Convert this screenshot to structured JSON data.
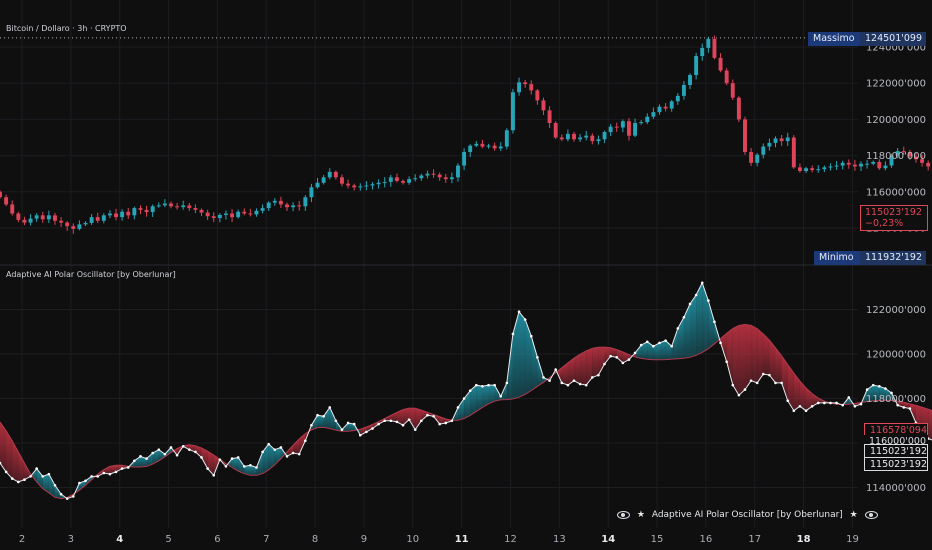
{
  "header": {
    "symbol_title": "Bitcoin / Dollaro · 3h · CRYPTO",
    "indicator_title": "Adaptive AI Polar Oscillator [by Oberlunar]"
  },
  "price_tags": {
    "max_label": "Massimo",
    "max_value": "124501'099",
    "min_label": "Minimo",
    "min_value": "111932'192",
    "last_price": "115023'192",
    "last_change": "−0,23%",
    "osc_red_value": "116578'094",
    "osc_gray_value": "116000'000",
    "osc_white_value_1": "115023'192",
    "osc_white_value_2": "115023'192"
  },
  "bottom_legend": {
    "left_icon": "eye-icon",
    "star": "★",
    "label": "Adaptive AI Polar Oscillator [by Oberlunar]",
    "right_icon": "eye-icon"
  },
  "colors": {
    "background": "#0f0f10",
    "up": "#26a6b8",
    "down": "#e0445a",
    "grid": "#1c1d20"
  },
  "chart_data": [
    {
      "type": "candlestick",
      "title": "Bitcoin / Dollaro · 3h · CRYPTO",
      "y_ticks": [
        114000,
        116000,
        118000,
        120000,
        122000,
        124000
      ],
      "ylim": [
        113400,
        124700
      ],
      "x_ticks": [
        "2",
        "3",
        "4",
        "5",
        "6",
        "7",
        "8",
        "9",
        "10",
        "11",
        "12",
        "13",
        "14",
        "15",
        "16",
        "17",
        "18",
        "19"
      ],
      "x_ticks_bold": [
        "4",
        "11",
        "14",
        "18"
      ],
      "period_hours": 3,
      "x_start_day": 1.55,
      "close": [
        115700,
        115300,
        114800,
        114450,
        114300,
        114520,
        114700,
        114480,
        114700,
        114400,
        114300,
        114100,
        113950,
        114200,
        114280,
        114600,
        114400,
        114700,
        114800,
        114600,
        114900,
        114700,
        115100,
        115000,
        114880,
        115200,
        115250,
        115350,
        115200,
        115150,
        115250,
        115100,
        115000,
        114850,
        114650,
        114550,
        114720,
        114800,
        114600,
        114900,
        114800,
        114750,
        114950,
        115100,
        115400,
        115500,
        115300,
        115150,
        115250,
        115200,
        115700,
        116250,
        116500,
        116800,
        117100,
        116800,
        116450,
        116350,
        116250,
        116300,
        116350,
        116420,
        116500,
        116550,
        116800,
        116600,
        116500,
        116700,
        116750,
        116900,
        117000,
        116950,
        116800,
        116700,
        116800,
        117450,
        118200,
        118550,
        118650,
        118500,
        118550,
        118400,
        118500,
        119400,
        121500,
        122050,
        121950,
        121600,
        121050,
        120500,
        119800,
        119000,
        118900,
        119200,
        118900,
        119000,
        119100,
        118800,
        118900,
        119300,
        119600,
        119550,
        119900,
        119100,
        119800,
        119850,
        120150,
        120400,
        120700,
        120600,
        121000,
        121300,
        121900,
        122450,
        123500,
        123950,
        124450,
        123400,
        122700,
        122000,
        121200,
        120000,
        118200,
        117600,
        118050,
        118500,
        118700,
        118950,
        118800,
        119000,
        117350,
        117150,
        117300,
        117200,
        117250,
        117350,
        117400,
        117450,
        117600,
        117500,
        117400,
        117550,
        117550,
        117650,
        117300,
        117450,
        118000,
        118250,
        118200,
        117950,
        117800,
        117600,
        117400,
        117500,
        116850,
        115800,
        115700,
        115550,
        115250,
        115750,
        115950,
        116200,
        115600,
        115023
      ]
    },
    {
      "type": "area",
      "title": "Adaptive AI Polar Oscillator [by Oberlunar]",
      "y_ticks": [
        114000,
        116000,
        118000,
        120000,
        122000
      ],
      "ylim": [
        113200,
        123400
      ],
      "x_start_day": 1.55,
      "series": [
        {
          "name": "",
          "values": [
            115100,
            114700,
            114400,
            114250,
            114350,
            114500,
            114850,
            114500,
            114600,
            114100,
            113700,
            113500,
            113600,
            114200,
            114300,
            114500,
            114500,
            114650,
            114600,
            114700,
            114850,
            114900,
            115200,
            115400,
            115300,
            115550,
            115700,
            115500,
            115800,
            115450,
            115850,
            115700,
            115600,
            115350,
            114850,
            114550,
            115250,
            114950,
            115300,
            115350,
            114950,
            115000,
            114900,
            115600,
            115950,
            115700,
            115800,
            115400,
            115550,
            115500,
            116100,
            116800,
            117250,
            117200,
            117600,
            117000,
            116600,
            116900,
            116850,
            116350,
            116500,
            116650,
            116850,
            117000,
            117000,
            116950,
            116800,
            117050,
            116600,
            117000,
            117250,
            117200,
            116850,
            116900,
            117000,
            117600,
            118000,
            118350,
            118600,
            118550,
            118600,
            118600,
            118100,
            118700,
            120900,
            121900,
            121550,
            120800,
            119850,
            118950,
            118800,
            119300,
            118700,
            118600,
            118800,
            118650,
            118600,
            118950,
            119050,
            119550,
            119900,
            119850,
            119600,
            119750,
            120050,
            120400,
            120550,
            120350,
            120500,
            120600,
            120350,
            121150,
            121650,
            122250,
            122650,
            123200,
            122400,
            121450,
            120500,
            119650,
            118600,
            118150,
            118400,
            118800,
            118700,
            119100,
            119050,
            118700,
            118700,
            117900,
            117450,
            117650,
            117450,
            117650,
            117800,
            117800,
            117800,
            117800,
            117700,
            118050,
            117650,
            117750,
            118400,
            118600,
            118550,
            118450,
            118250,
            117700,
            117600,
            117550,
            116900,
            116300,
            116200,
            116100,
            116000,
            115700,
            116000,
            116300,
            116100,
            115600
          ]
        },
        {
          "name": "",
          "values": [
            116950,
            116550,
            116100,
            115600,
            115100,
            114600,
            114250,
            113950,
            113760,
            113560,
            113500,
            113550,
            113700,
            113880,
            114100,
            114350,
            114600,
            114800,
            114950,
            115000,
            115000,
            114950,
            114920,
            114920,
            114950,
            115050,
            115200,
            115380,
            115570,
            115750,
            115880,
            115920,
            115880,
            115780,
            115630,
            115460,
            115270,
            115080,
            114900,
            114740,
            114620,
            114550,
            114550,
            114630,
            114790,
            115020,
            115300,
            115600,
            115900,
            116180,
            116420,
            116590,
            116690,
            116700,
            116650,
            116580,
            116530,
            116530,
            116560,
            116620,
            116720,
            116830,
            116960,
            117100,
            117240,
            117380,
            117500,
            117570,
            117560,
            117480,
            117380,
            117280,
            117180,
            117080,
            117020,
            117020,
            117100,
            117240,
            117420,
            117600,
            117760,
            117880,
            117940,
            117950,
            117980,
            118060,
            118190,
            118360,
            118550,
            118730,
            118940,
            119160,
            119380,
            119600,
            119810,
            119990,
            120140,
            120250,
            120300,
            120310,
            120280,
            120200,
            120090,
            119970,
            119870,
            119800,
            119760,
            119740,
            119740,
            119750,
            119770,
            119790,
            119810,
            119850,
            119940,
            120070,
            120240,
            120460,
            120690,
            120930,
            121140,
            121280,
            121330,
            121290,
            121140,
            120900,
            120620,
            120280,
            119920,
            119530,
            119140,
            118780,
            118470,
            118220,
            118020,
            117880,
            117790,
            117740,
            117730,
            117740,
            117780,
            117820,
            117860,
            117890,
            117910,
            117920,
            117910,
            117880,
            117830,
            117760,
            117690,
            117610,
            117520,
            117420,
            117310,
            117220,
            117120,
            117030,
            116940,
            116860,
            116790,
            116720,
            116640,
            116578
          ]
        }
      ]
    }
  ]
}
